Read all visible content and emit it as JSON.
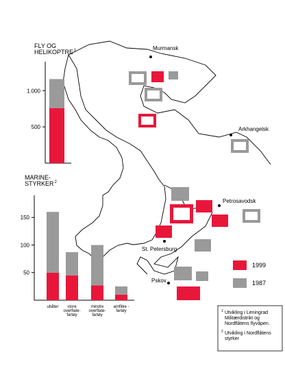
{
  "chart_data": [
    {
      "type": "bar",
      "stacked": true,
      "title": "FLY OG\nHELIKOPTRE",
      "title_note": "1",
      "categories": [
        null
      ],
      "series": [
        {
          "name": "1999",
          "color": "#e8173a",
          "values": [
            760
          ]
        },
        {
          "name": "1987",
          "color": "#9a9a9a",
          "values": [
            400
          ]
        }
      ],
      "ylim": [
        0,
        1400
      ],
      "yticks": [
        500,
        {
          "value": 1000,
          "label": "1.000"
        }
      ]
    },
    {
      "type": "bar",
      "stacked": true,
      "title": "MARINE-\nSTYRKER",
      "title_note": "2",
      "categories": [
        "ubåter",
        "store\noverflate-\nfartøy",
        "mindre\noverflate-\nfartøy",
        "amfibie -\nfartøy"
      ],
      "series": [
        {
          "name": "1999",
          "color": "#e8173a",
          "values": [
            50,
            45,
            27,
            10
          ]
        },
        {
          "name": "1987",
          "color": "#9a9a9a",
          "values": [
            110,
            42,
            73,
            15
          ]
        }
      ],
      "ylim": [
        0,
        190
      ],
      "yticks": [
        50,
        100,
        150
      ],
      "legend": "bottom-right"
    }
  ],
  "map": {
    "cities": [
      "Murmansk",
      "Arkhangelsk",
      "Petrosavodsk",
      "St. Petersburg",
      "Pskov"
    ]
  },
  "footnotes": [
    {
      "mark": "1",
      "text": "Utvikling i Leningrad\nMilitærdistrikt og\nNordflåtens flyvåpen."
    },
    {
      "mark": "2",
      "text": "Utvikling i Nordflåtens\nstyrker"
    }
  ]
}
